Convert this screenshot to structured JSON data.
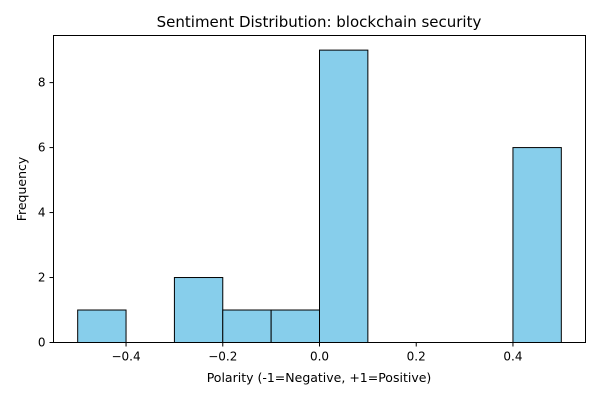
{
  "chart_data": {
    "type": "bar",
    "title": "Sentiment Distribution: blockchain security",
    "xlabel": "Polarity (-1=Negative, +1=Positive)",
    "ylabel": "Frequency",
    "bins": [
      {
        "x0": -0.5,
        "x1": -0.4,
        "count": 1
      },
      {
        "x0": -0.4,
        "x1": -0.3,
        "count": 0
      },
      {
        "x0": -0.3,
        "x1": -0.2,
        "count": 2
      },
      {
        "x0": -0.2,
        "x1": -0.1,
        "count": 1
      },
      {
        "x0": -0.1,
        "x1": 0.0,
        "count": 1
      },
      {
        "x0": 0.0,
        "x1": 0.1,
        "count": 9
      },
      {
        "x0": 0.1,
        "x1": 0.2,
        "count": 0
      },
      {
        "x0": 0.2,
        "x1": 0.3,
        "count": 0
      },
      {
        "x0": 0.3,
        "x1": 0.4,
        "count": 0
      },
      {
        "x0": 0.4,
        "x1": 0.5,
        "count": 6
      }
    ],
    "xlim": [
      -0.55,
      0.55
    ],
    "ylim": [
      0,
      9.45
    ],
    "xticks": [
      -0.4,
      -0.2,
      0.0,
      0.2,
      0.4
    ],
    "xtick_labels": [
      "−0.4",
      "−0.2",
      "0.0",
      "0.2",
      "0.4"
    ],
    "yticks": [
      0,
      2,
      4,
      6,
      8
    ],
    "ytick_labels": [
      "0",
      "2",
      "4",
      "6",
      "8"
    ],
    "grid": false,
    "bar_color": "#87ceeb",
    "edge_color": "#000000"
  }
}
